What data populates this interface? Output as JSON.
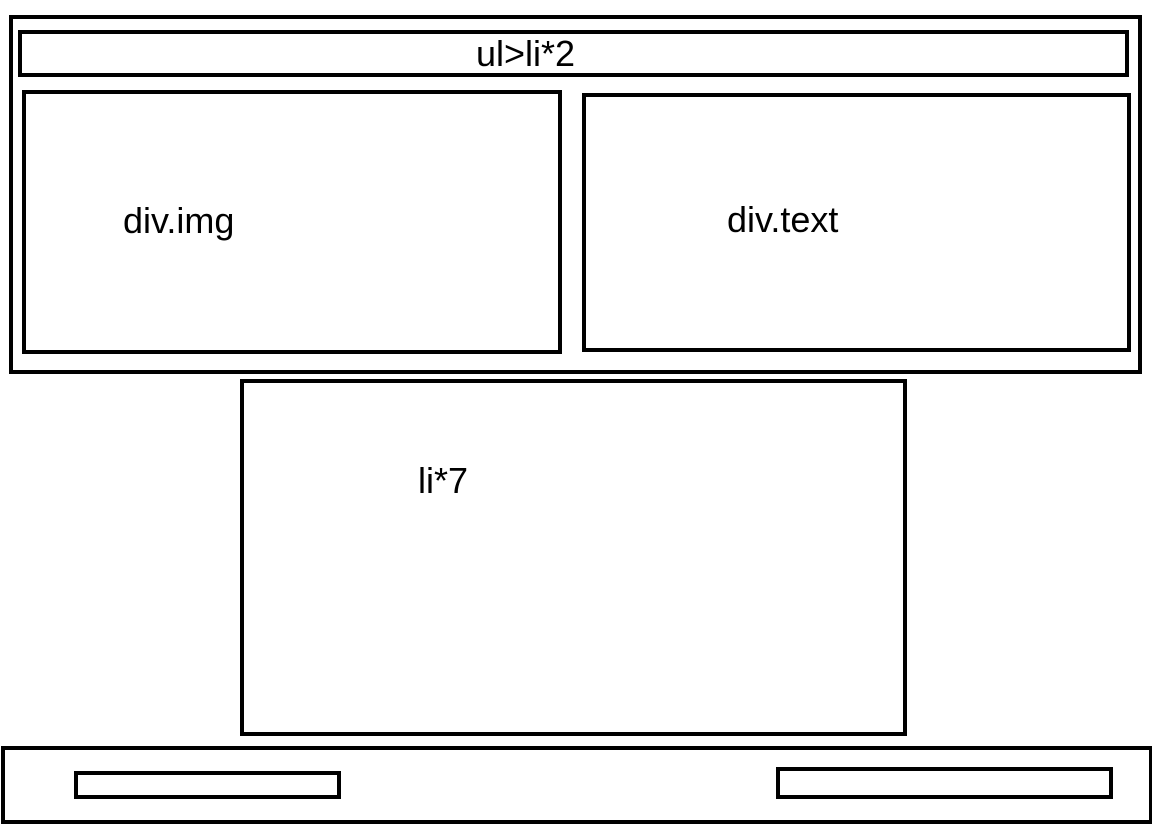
{
  "diagram": {
    "header_nav": {
      "label": "ul>li*2"
    },
    "image_panel": {
      "label": "div.img"
    },
    "text_panel": {
      "label": "div.text"
    },
    "list_section": {
      "label": "li*7"
    },
    "footer": {
      "left_bar": {
        "label": ""
      },
      "right_bar": {
        "label": ""
      }
    },
    "colors": {
      "stroke": "#000000",
      "background": "#ffffff"
    }
  }
}
